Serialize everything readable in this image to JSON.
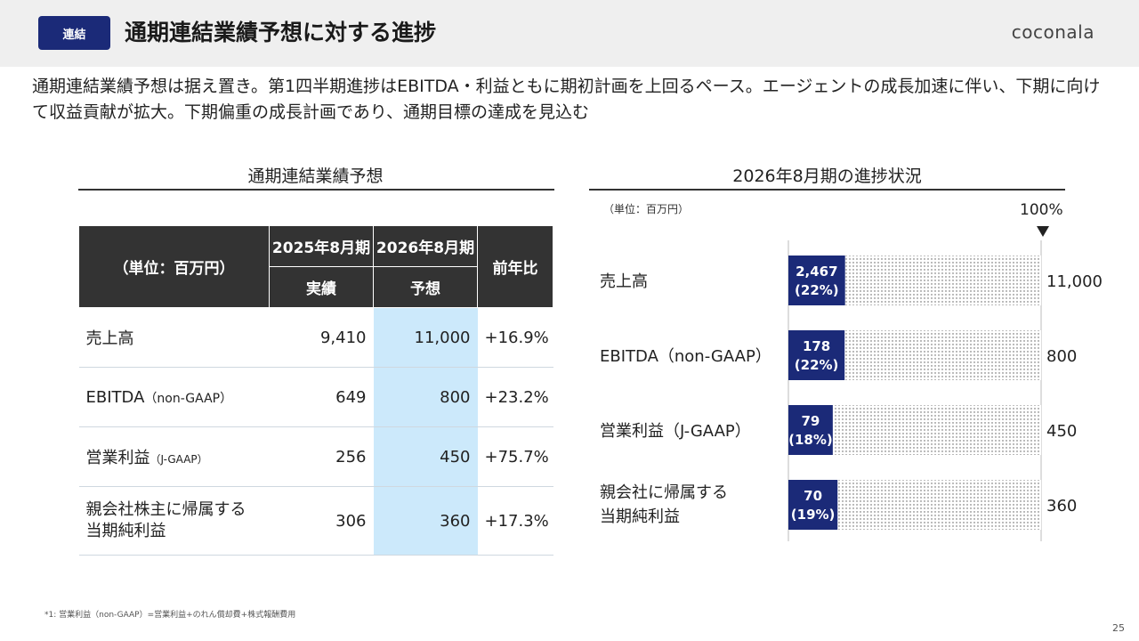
{
  "header": {
    "badge": "連結",
    "title": "通期連結業績予想に対する進捗",
    "logo": "coconala"
  },
  "summary": "通期連結業績予想は据え置き。第1四半期進捗はEBITDA・利益ともに期初計画を上回るペース。エージェントの成長加速に伴い、下期に向けて収益貢献が拡大。下期偏重の成長計画であり、通期目標の達成を見込む",
  "forecast_table": {
    "section_title": "通期連結業績予想",
    "unit_header": "（単位：百万円）",
    "col_2025": "2025年8月期",
    "col_2026": "2026年8月期",
    "sub_2025": "実績",
    "sub_2026": "予想",
    "col_yoy": "前年比",
    "rows": [
      {
        "label": "売上高",
        "note": "",
        "actual": "9,410",
        "forecast": "11,000",
        "yoy": "+16.9%"
      },
      {
        "label": "EBITDA",
        "note": "（non-GAAP）",
        "actual": "649",
        "forecast": "800",
        "yoy": "+23.2%"
      },
      {
        "label": "営業利益",
        "note": "（J-GAAP）",
        "actual": "256",
        "forecast": "450",
        "yoy": "+75.7%"
      },
      {
        "label": "親会社株主に帰属する当期純利益",
        "note": "",
        "actual": "306",
        "forecast": "360",
        "yoy": "+17.3%"
      }
    ]
  },
  "progress": {
    "section_title": "2026年8月期の進捗状況",
    "unit": "（単位：百万円）",
    "marker": "100%"
  },
  "colors": {
    "bar": "#1b2a78",
    "highlight": "#cce9fb",
    "header": "#333333"
  },
  "chart_data": {
    "type": "bar",
    "orientation": "horizontal",
    "categories": [
      "売上高",
      "EBITDA（non-GAAP）",
      "営業利益（J-GAAP）",
      "親会社に帰属する当期純利益"
    ],
    "category_lines": [
      [
        "売上高"
      ],
      [
        "EBITDA（non-GAAP）"
      ],
      [
        "営業利益（J-GAAP）"
      ],
      [
        "親会社に帰属する",
        "当期純利益"
      ]
    ],
    "values": [
      2467,
      178,
      79,
      70
    ],
    "value_labels": [
      "2,467",
      "178",
      "79",
      "70"
    ],
    "percent": [
      22,
      22,
      18,
      19
    ],
    "percent_labels": [
      "(22%)",
      "(22%)",
      "(18%)",
      "(19%)"
    ],
    "targets": [
      11000,
      800,
      450,
      360
    ],
    "target_labels": [
      "11,000",
      "800",
      "450",
      "360"
    ],
    "xlim": [
      0,
      1
    ]
  },
  "footnote": "*1: 営業利益（non-GAAP）=営業利益+のれん償却費+株式報酬費用",
  "page_number": "25"
}
